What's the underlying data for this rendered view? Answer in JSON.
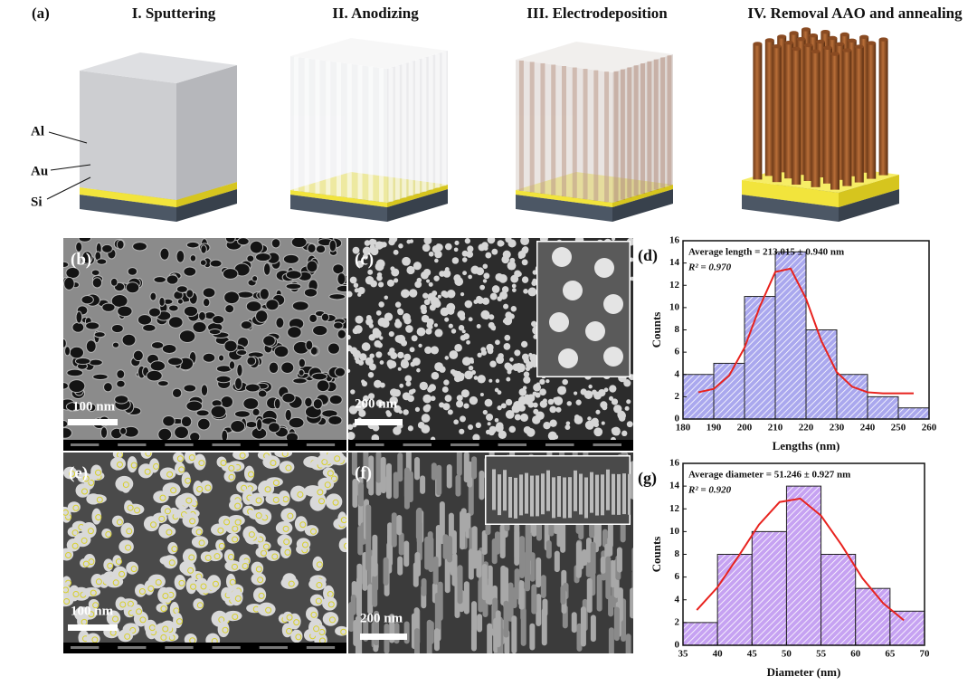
{
  "figure": {
    "panel_a": {
      "label": "(a)",
      "steps": [
        "I. Sputtering",
        "II. Anodizing",
        "III. Electrodeposition",
        "IV. Removal AAO and annealing"
      ],
      "layers": [
        "Al",
        "Au",
        "Si"
      ]
    },
    "sem_panels": [
      {
        "label": "(b)",
        "scale_bar": "100 nm"
      },
      {
        "label": "(c)",
        "scale_bar": "200 nm"
      },
      {
        "label": "(e)",
        "scale_bar": "100 nm"
      },
      {
        "label": "(f)",
        "scale_bar": "200 nm"
      }
    ]
  },
  "chart_data": [
    {
      "type": "histogram",
      "label": "(d)",
      "annotation": "Average length = 213.015 ± 0.940 nm",
      "fit_label": "R² = 0.970",
      "x_label": "Lengths (nm)",
      "y_label": "Counts",
      "bins": [
        180,
        190,
        200,
        210,
        220,
        230,
        240,
        250,
        260
      ],
      "values": [
        4,
        5,
        11,
        15,
        8,
        4,
        2,
        1
      ],
      "color": "#aaa8ee",
      "fit": {
        "color": "#e8231f",
        "x": [
          185,
          190,
          195,
          200,
          205,
          210,
          215,
          220,
          225,
          230,
          235,
          240,
          245,
          250,
          255
        ],
        "values": [
          2.4,
          2.7,
          3.9,
          6.4,
          10.1,
          13.2,
          13.5,
          10.8,
          7.0,
          4.2,
          2.9,
          2.4,
          2.3,
          2.3,
          2.3
        ]
      },
      "xlim": [
        180,
        260
      ],
      "xticks": [
        180,
        190,
        200,
        210,
        220,
        230,
        240,
        250,
        260
      ],
      "ylim": [
        0,
        16
      ],
      "yticks": [
        0,
        2,
        4,
        6,
        8,
        10,
        12,
        14,
        16
      ]
    },
    {
      "type": "histogram",
      "label": "(g)",
      "annotation": "Average diameter = 51.246 ± 0.927 nm",
      "fit_label": "R² = 0.920",
      "x_label": "Diameter (nm)",
      "y_label": "Counts",
      "bins": [
        35,
        40,
        45,
        50,
        55,
        60,
        65,
        70
      ],
      "values": [
        2,
        8,
        10,
        14,
        8,
        5,
        3
      ],
      "color": "#c6a2f2",
      "fit": {
        "color": "#e8231f",
        "x": [
          37,
          40,
          43,
          46,
          49,
          52,
          55,
          58,
          61,
          64,
          67
        ],
        "values": [
          3.1,
          5.1,
          7.8,
          10.6,
          12.6,
          12.9,
          11.4,
          8.8,
          5.9,
          3.7,
          2.2
        ]
      },
      "xlim": [
        35,
        70
      ],
      "xticks": [
        35,
        40,
        45,
        50,
        55,
        60,
        65,
        70
      ],
      "ylim": [
        0,
        16
      ],
      "yticks": [
        0,
        2,
        4,
        6,
        8,
        10,
        12,
        14,
        16
      ]
    }
  ]
}
